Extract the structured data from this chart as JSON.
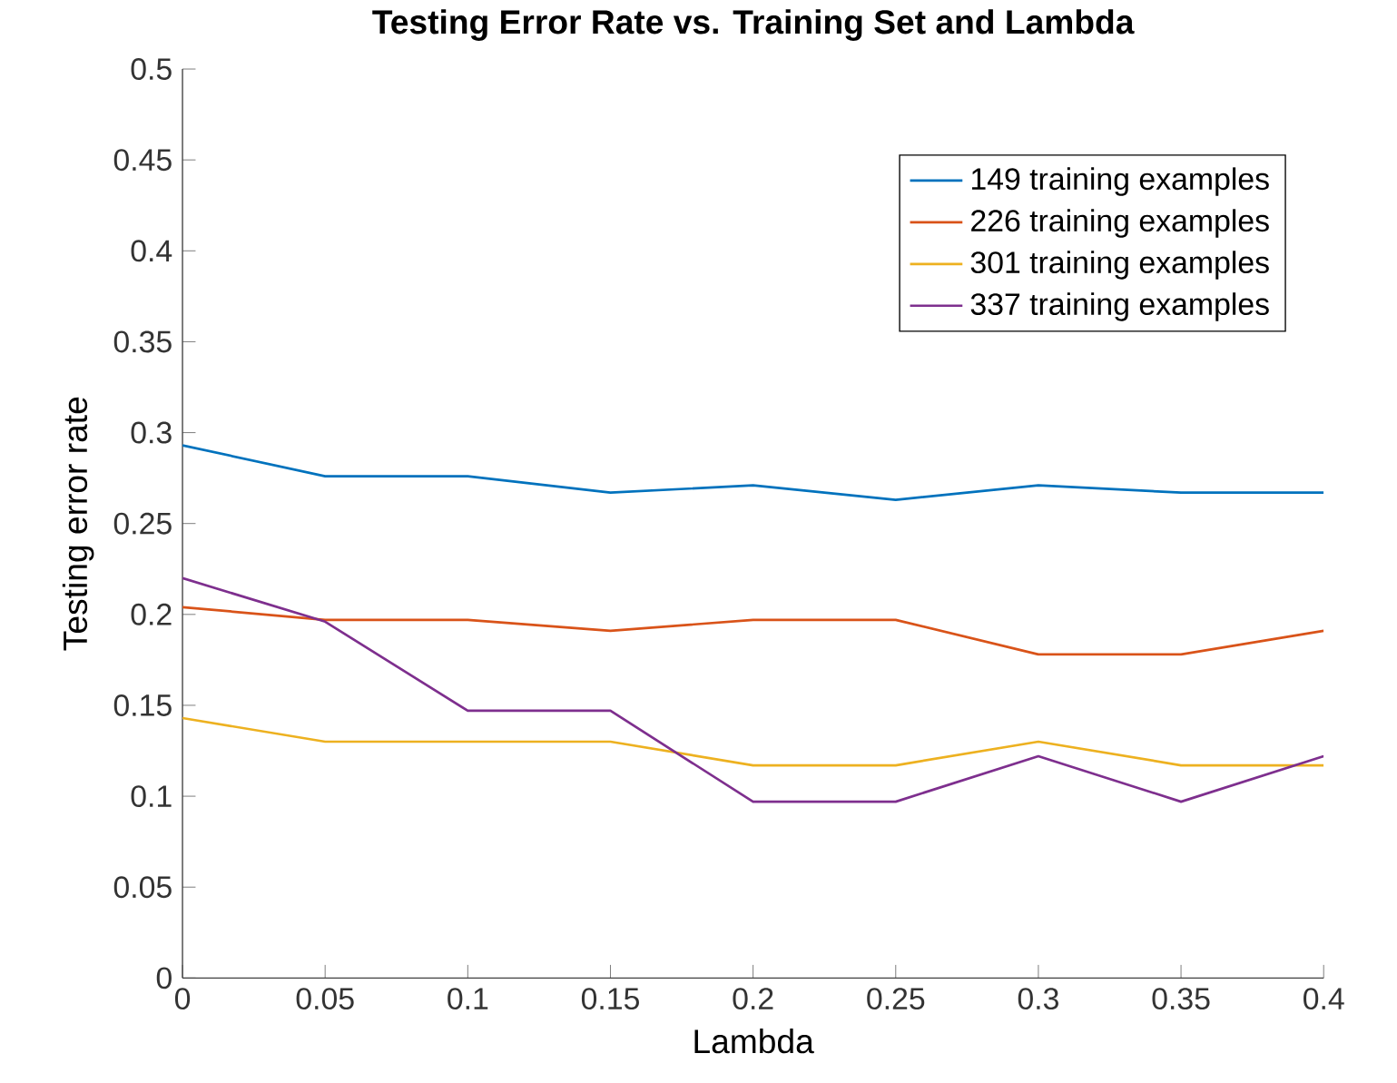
{
  "chart_data": {
    "type": "line",
    "title": "Testing Error Rate vs. Training Set and Lambda",
    "xlabel": "Lambda",
    "ylabel": "Testing error rate",
    "x": [
      0,
      0.05,
      0.1,
      0.15,
      0.2,
      0.25,
      0.3,
      0.35,
      0.4
    ],
    "series": [
      {
        "name": "149 training examples",
        "color": "#0072bd",
        "values": [
          0.293,
          0.276,
          0.276,
          0.267,
          0.271,
          0.263,
          0.271,
          0.267,
          0.267
        ]
      },
      {
        "name": "226 training examples",
        "color": "#d95319",
        "values": [
          0.204,
          0.197,
          0.197,
          0.191,
          0.197,
          0.197,
          0.178,
          0.178,
          0.191
        ]
      },
      {
        "name": "301 training examples",
        "color": "#edb120",
        "values": [
          0.143,
          0.13,
          0.13,
          0.13,
          0.117,
          0.117,
          0.13,
          0.117,
          0.117
        ]
      },
      {
        "name": "337 training examples",
        "color": "#7e2f8e",
        "values": [
          0.22,
          0.196,
          0.147,
          0.147,
          0.097,
          0.097,
          0.122,
          0.097,
          0.122
        ]
      }
    ],
    "xlim": [
      0,
      0.4
    ],
    "ylim": [
      0,
      0.5
    ],
    "xticks": [
      0,
      0.05,
      0.1,
      0.15,
      0.2,
      0.25,
      0.3,
      0.35,
      0.4
    ],
    "yticks": [
      0,
      0.05,
      0.1,
      0.15,
      0.2,
      0.25,
      0.3,
      0.35,
      0.4,
      0.45,
      0.5
    ],
    "legend": "top right",
    "grid": false,
    "marker": "none",
    "line_style": "solid"
  }
}
